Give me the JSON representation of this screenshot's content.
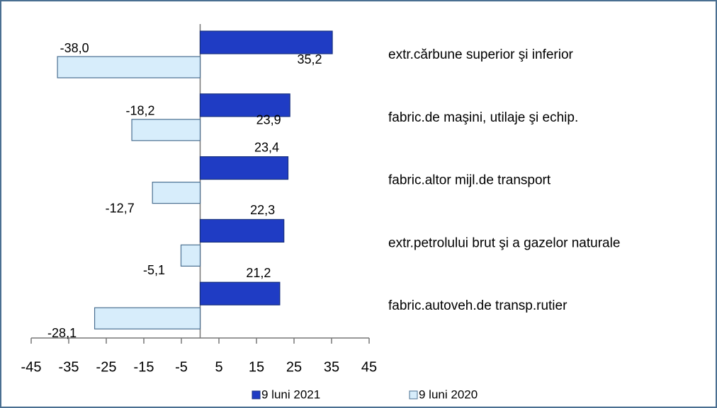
{
  "chart_data": {
    "type": "hbar",
    "categories": [
      "extr.cărbune superior şi inferior",
      "fabric.de maşini, utilaje şi echip.",
      "fabric.altor mijl.de transport",
      "extr.petrolului brut şi a gazelor naturale",
      "fabric.autoveh.de transp.rutier"
    ],
    "series": [
      {
        "name": "9 luni 2021",
        "color": "#1f3cc4",
        "values": [
          35.2,
          23.9,
          23.4,
          22.3,
          21.2
        ],
        "value_labels": [
          "35,2",
          "23,9",
          "23,4",
          "22,3",
          "21,2"
        ]
      },
      {
        "name": "9 luni 2020",
        "color": "#d7edfb",
        "values": [
          -38.0,
          -18.2,
          -12.7,
          -5.1,
          -28.1
        ],
        "value_labels": [
          "-38,0",
          "-18,2",
          "-12,7",
          "-5,1",
          "-28,1"
        ]
      }
    ],
    "xlim": [
      -45,
      45
    ],
    "xticks": [
      -45,
      -35,
      -25,
      -15,
      -5,
      5,
      15,
      25,
      35,
      45
    ],
    "legend": "bottom"
  }
}
